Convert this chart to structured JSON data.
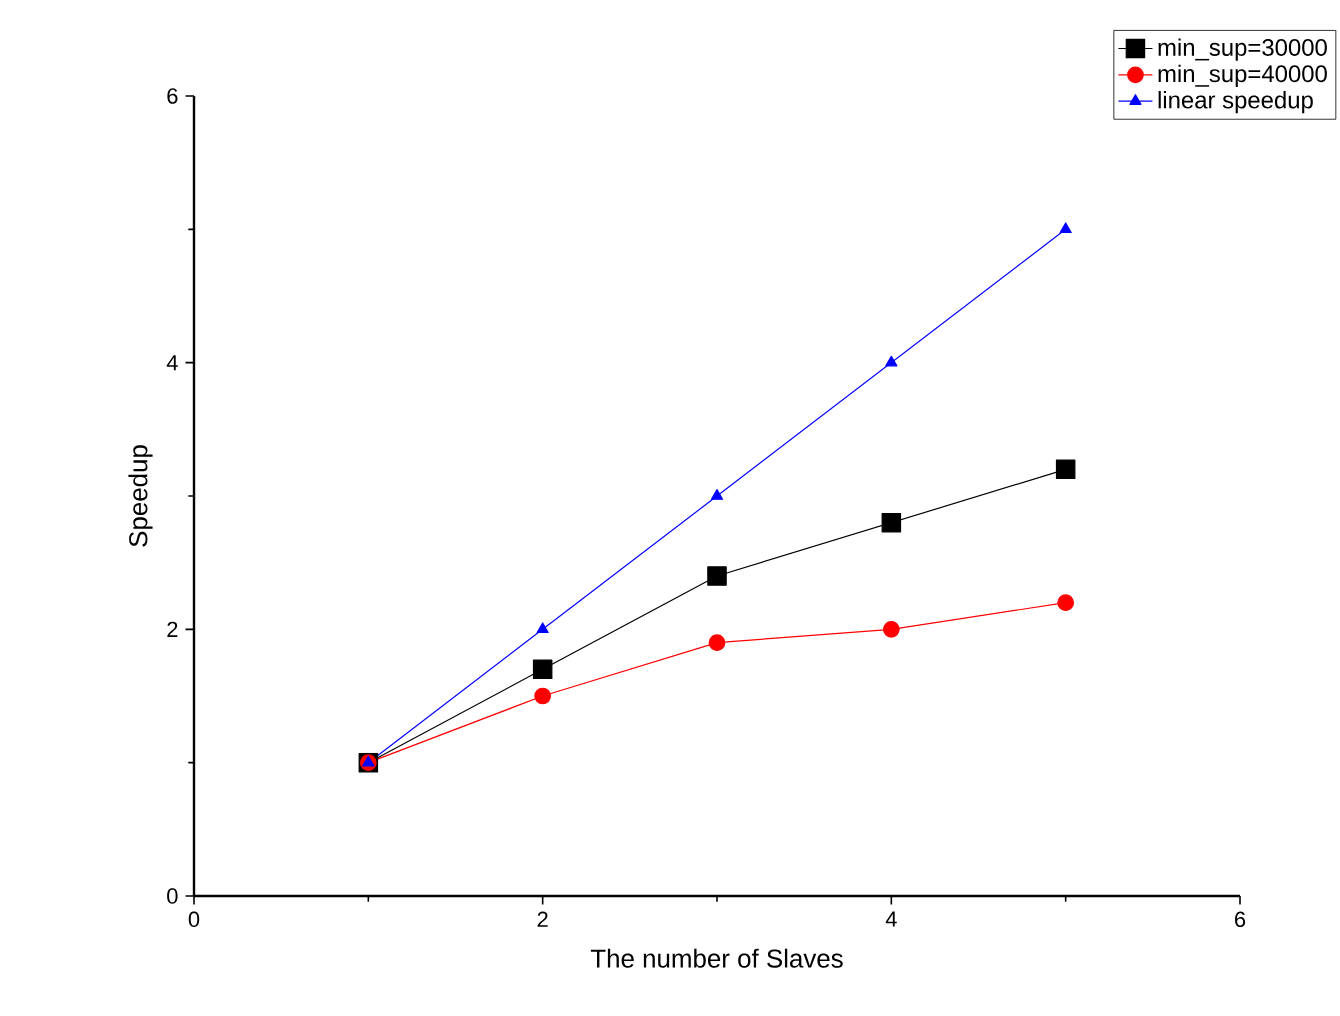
{
  "chart_data": {
    "type": "line",
    "xlabel": "The number of Slaves",
    "ylabel": "Speedup",
    "x": [
      1,
      2,
      3,
      4,
      5
    ],
    "series": [
      {
        "name": "min_sup=30000",
        "color": "#000000",
        "marker": "square",
        "values": [
          1,
          1.7,
          2.4,
          2.8,
          3.2
        ]
      },
      {
        "name": "min_sup=40000",
        "color": "#ff0000",
        "marker": "circle",
        "values": [
          1,
          1.5,
          1.9,
          2.0,
          2.2
        ]
      },
      {
        "name": "linear speedup",
        "color": "#0000ff",
        "marker": "triangle",
        "values": [
          1,
          2,
          3,
          4,
          5
        ]
      }
    ],
    "xlim": [
      0,
      6
    ],
    "ylim": [
      0,
      6
    ],
    "xticks": [
      0,
      2,
      4,
      6
    ],
    "yticks": [
      0,
      2,
      4,
      6
    ],
    "grid": false,
    "legend": "top right",
    "line_style": "solid"
  }
}
